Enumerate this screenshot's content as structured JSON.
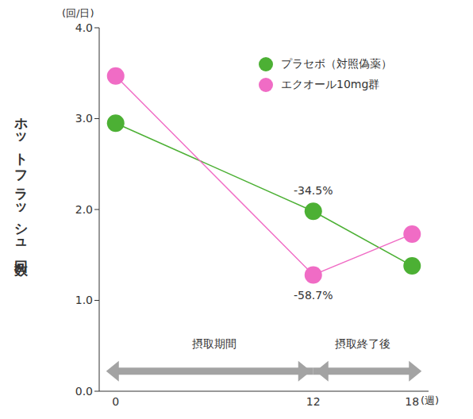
{
  "chart_data": {
    "type": "line",
    "y_label": "ホットフラッシュ回数",
    "y_unit": "(回/日)",
    "x_unit": "(週)",
    "x": [
      0,
      12,
      18
    ],
    "xlim": [
      -1,
      19
    ],
    "xticks": [
      0,
      12,
      18
    ],
    "ylim": [
      0,
      4
    ],
    "yticks": [
      {
        "value": 0,
        "label": "0.0"
      },
      {
        "value": 1,
        "label": "1.0"
      },
      {
        "value": 2,
        "label": "2.0"
      },
      {
        "value": 3,
        "label": "3.0"
      },
      {
        "value": 4,
        "label": "4.0"
      }
    ],
    "series": [
      {
        "name": "プラセボ（対照偽薬）",
        "color": "#4cb034",
        "marker": "circle",
        "values": [
          2.95,
          1.98,
          1.38
        ]
      },
      {
        "name": "エクオール10mg群",
        "color": "#f06cc5",
        "marker": "circle",
        "values": [
          3.47,
          1.28,
          1.73
        ]
      }
    ],
    "annotations": [
      {
        "text": "-34.5%",
        "x": 12,
        "series": "プラセボ（対照偽薬）",
        "position": "above"
      },
      {
        "text": "-58.7%",
        "x": 12,
        "series": "エクオール10mg群",
        "position": "below"
      }
    ],
    "periods": [
      {
        "label": "摂取期間",
        "start": 0,
        "end": 12
      },
      {
        "label": "摂取終了後",
        "start": 12,
        "end": 18
      }
    ],
    "legend": "upper right",
    "grid": false
  }
}
